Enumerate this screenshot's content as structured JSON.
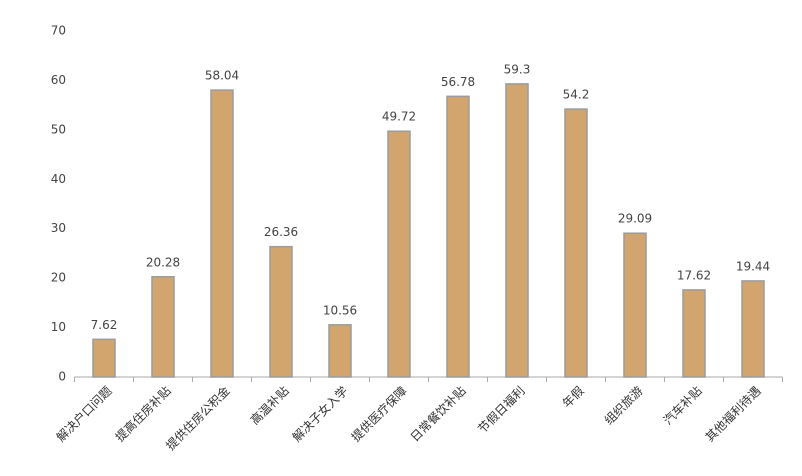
{
  "chart_data": {
    "type": "bar",
    "categories": [
      "解决户口问题",
      "提高住房补贴",
      "提供住房公积金",
      "高温补贴",
      "解决子女入学",
      "提供医疗保障",
      "日常餐饮补贴",
      "节假日福利",
      "年假",
      "组织旅游",
      "汽车补贴",
      "其他福利待遇"
    ],
    "values": [
      7.62,
      20.28,
      58.04,
      26.36,
      10.56,
      49.72,
      56.78,
      59.3,
      54.2,
      29.09,
      17.62,
      19.44
    ],
    "color": "#d2a56e",
    "ylim": [
      0,
      70
    ],
    "yticks": [
      0,
      10,
      20,
      30,
      40,
      50,
      60,
      70
    ],
    "grid": false
  }
}
